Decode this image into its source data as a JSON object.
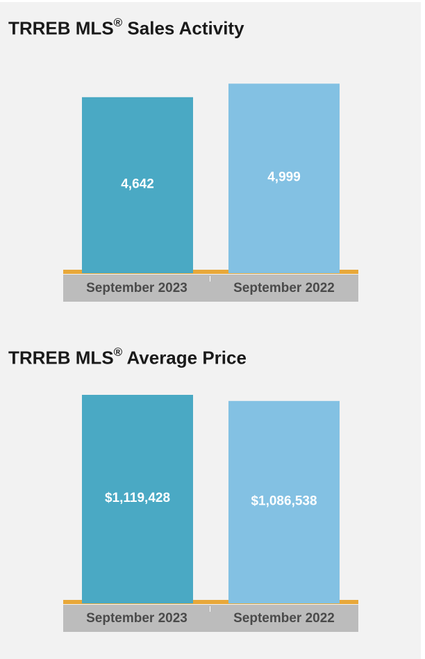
{
  "colors": {
    "background": "#f2f2f2",
    "bar_current": "#4aa9c4",
    "bar_previous": "#83c1e3",
    "baseline": "#e8a83a",
    "category_band": "#bcbcbc",
    "category_text": "#4a4a4a",
    "value_text": "#ffffff",
    "title_text": "#1a1a1a"
  },
  "chart_data": [
    {
      "type": "bar",
      "title": "TRREB MLS",
      "title_mark": "®",
      "title_suffix": " Sales Activity",
      "categories": [
        "September 2023",
        "September 2022"
      ],
      "values": [
        4642,
        4999
      ],
      "value_labels": [
        "4,642",
        "4,999"
      ],
      "ylim": [
        0,
        5500
      ],
      "grid": false
    },
    {
      "type": "bar",
      "title": "TRREB MLS",
      "title_mark": "®",
      "title_suffix": " Average Price",
      "categories": [
        "September 2023",
        "September 2022"
      ],
      "values": [
        1119428,
        1086538
      ],
      "value_labels": [
        "$1,119,428",
        "$1,086,538"
      ],
      "ylim": [
        0,
        1119428
      ],
      "grid": false
    }
  ]
}
